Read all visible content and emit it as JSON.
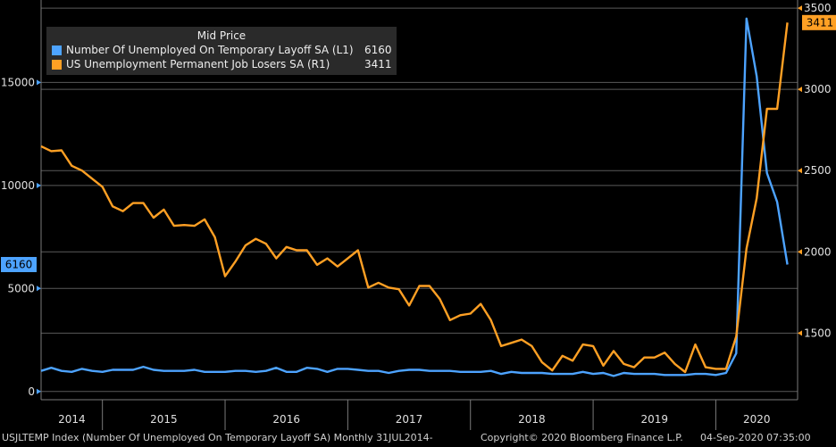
{
  "chart_data": {
    "type": "line",
    "legend_title": "Mid Price",
    "legend_position": "top-left",
    "grid": true,
    "x_tick_labels": [
      "2014",
      "2015",
      "2016",
      "2017",
      "2018",
      "2019",
      "2020"
    ],
    "left_axis": {
      "ticks": [
        "0",
        "5000",
        "10000",
        "15000"
      ],
      "ylim": [
        -400,
        19000
      ]
    },
    "right_axis": {
      "ticks": [
        "1500",
        "2000",
        "2500",
        "3000",
        "3500"
      ],
      "ylim": [
        1090,
        3550
      ]
    },
    "x_range": [
      "2014-07",
      "2020-09"
    ],
    "series": [
      {
        "name": "Number Of Unemployed On Temporary Layoff SA  (L1)",
        "last_value": "6160",
        "color": "#4da3ff",
        "axis": "left",
        "dates": [
          "2014-07",
          "2014-08",
          "2014-09",
          "2014-10",
          "2014-11",
          "2014-12",
          "2015-01",
          "2015-02",
          "2015-03",
          "2015-04",
          "2015-05",
          "2015-06",
          "2015-07",
          "2015-08",
          "2015-09",
          "2015-10",
          "2015-11",
          "2015-12",
          "2016-01",
          "2016-02",
          "2016-03",
          "2016-04",
          "2016-05",
          "2016-06",
          "2016-07",
          "2016-08",
          "2016-09",
          "2016-10",
          "2016-11",
          "2016-12",
          "2017-01",
          "2017-02",
          "2017-03",
          "2017-04",
          "2017-05",
          "2017-06",
          "2017-07",
          "2017-08",
          "2017-09",
          "2017-10",
          "2017-11",
          "2017-12",
          "2018-01",
          "2018-02",
          "2018-03",
          "2018-04",
          "2018-05",
          "2018-06",
          "2018-07",
          "2018-08",
          "2018-09",
          "2018-10",
          "2018-11",
          "2018-12",
          "2019-01",
          "2019-02",
          "2019-03",
          "2019-04",
          "2019-05",
          "2019-06",
          "2019-07",
          "2019-08",
          "2019-09",
          "2019-10",
          "2019-11",
          "2019-12",
          "2020-01",
          "2020-02",
          "2020-03",
          "2020-04",
          "2020-05",
          "2020-06",
          "2020-07",
          "2020-08"
        ],
        "values": [
          1000,
          1150,
          1000,
          950,
          1100,
          1000,
          950,
          1050,
          1050,
          1050,
          1200,
          1050,
          1000,
          1000,
          1000,
          1050,
          950,
          950,
          950,
          1000,
          1000,
          950,
          1000,
          1150,
          950,
          950,
          1150,
          1100,
          950,
          1100,
          1100,
          1050,
          1000,
          1000,
          900,
          1000,
          1050,
          1050,
          1000,
          1000,
          1000,
          950,
          950,
          950,
          1000,
          850,
          950,
          900,
          900,
          900,
          850,
          850,
          850,
          950,
          850,
          900,
          750,
          900,
          850,
          850,
          850,
          800,
          800,
          800,
          850,
          850,
          800,
          900,
          1850,
          18100,
          15300,
          10600,
          9200,
          6160
        ]
      },
      {
        "name": "US Unemployment Permanent Job Losers SA  (R1)",
        "last_value": "3411",
        "color": "#ffa024",
        "axis": "right",
        "dates": [
          "2014-07",
          "2014-08",
          "2014-09",
          "2014-10",
          "2014-11",
          "2014-12",
          "2015-01",
          "2015-02",
          "2015-03",
          "2015-04",
          "2015-05",
          "2015-06",
          "2015-07",
          "2015-08",
          "2015-09",
          "2015-10",
          "2015-11",
          "2015-12",
          "2016-01",
          "2016-02",
          "2016-03",
          "2016-04",
          "2016-05",
          "2016-06",
          "2016-07",
          "2016-08",
          "2016-09",
          "2016-10",
          "2016-11",
          "2016-12",
          "2017-01",
          "2017-02",
          "2017-03",
          "2017-04",
          "2017-05",
          "2017-06",
          "2017-07",
          "2017-08",
          "2017-09",
          "2017-10",
          "2017-11",
          "2017-12",
          "2018-01",
          "2018-02",
          "2018-03",
          "2018-04",
          "2018-05",
          "2018-06",
          "2018-07",
          "2018-08",
          "2018-09",
          "2018-10",
          "2018-11",
          "2018-12",
          "2019-01",
          "2019-02",
          "2019-03",
          "2019-04",
          "2019-05",
          "2019-06",
          "2019-07",
          "2019-08",
          "2019-09",
          "2019-10",
          "2019-11",
          "2019-12",
          "2020-01",
          "2020-02",
          "2020-03",
          "2020-04",
          "2020-05",
          "2020-06",
          "2020-07",
          "2020-08"
        ],
        "values": [
          2650,
          2620,
          2625,
          2530,
          2500,
          2450,
          2400,
          2280,
          2250,
          2300,
          2300,
          2210,
          2260,
          2160,
          2165,
          2160,
          2200,
          2090,
          1850,
          1940,
          2040,
          2080,
          2050,
          1960,
          2030,
          2010,
          2010,
          1920,
          1960,
          1910,
          1960,
          2010,
          1780,
          1810,
          1780,
          1770,
          1670,
          1790,
          1790,
          1710,
          1580,
          1610,
          1620,
          1680,
          1580,
          1420,
          1440,
          1460,
          1420,
          1320,
          1270,
          1360,
          1330,
          1430,
          1420,
          1300,
          1390,
          1310,
          1290,
          1350,
          1350,
          1380,
          1310,
          1260,
          1430,
          1290,
          1280,
          1280,
          1480,
          2020,
          2330,
          2880,
          2880,
          3411
        ]
      }
    ]
  },
  "footer": {
    "index_text": "USJLTEMP Index (Number Of Unemployed On Temporary Layoff SA)  Monthly 31JUL2014-",
    "copyright_text": "Copyright© 2020 Bloomberg Finance L.P.",
    "timestamp_text": "04-Sep-2020 07:35:00"
  }
}
